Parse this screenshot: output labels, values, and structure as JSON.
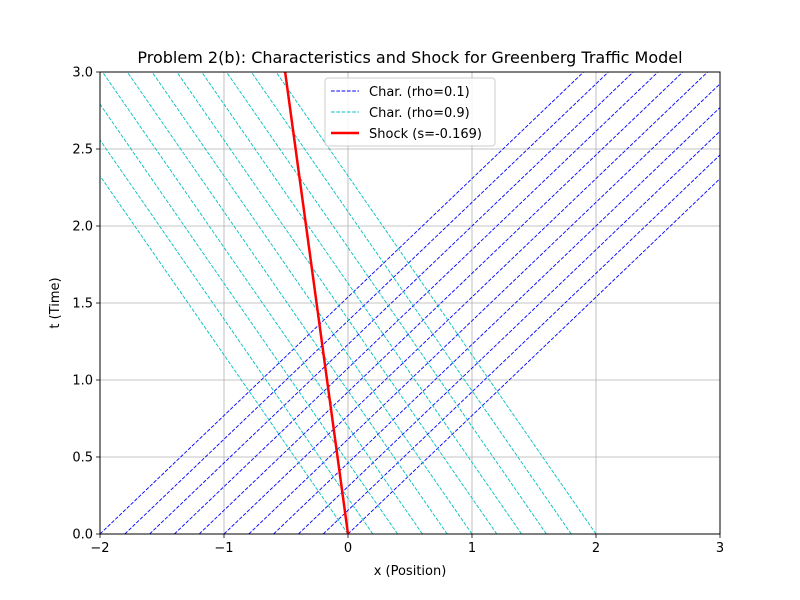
{
  "chart_data": {
    "type": "line",
    "title": "Problem 2(b): Characteristics and Shock for Greenberg Traffic Model",
    "xlabel": "x (Position)",
    "ylabel": "t (Time)",
    "xlim": [
      -2,
      3
    ],
    "ylim": [
      0,
      3
    ],
    "xticks": [
      -2,
      -1,
      0,
      1,
      2,
      3
    ],
    "xtick_labels": [
      "−2",
      "−1",
      "0",
      "1",
      "2",
      "3"
    ],
    "yticks": [
      0,
      0.5,
      1,
      1.5,
      2,
      2.5,
      3
    ],
    "ytick_labels": [
      "0.0",
      "0.5",
      "1.0",
      "1.5",
      "2.0",
      "2.5",
      "3.0"
    ],
    "grid": true,
    "legend_position": "upper center",
    "colors": {
      "left_characteristics": "#0000ff",
      "right_characteristics": "#00bfbf",
      "shock": "#ff0000",
      "grid": "#b0b0b0"
    },
    "series": [
      {
        "name": "Char. (rho=0.1)",
        "style": "dashed",
        "speed_dx_dt": 1.3,
        "x0": [
          -2.0,
          -1.8,
          -1.6,
          -1.4,
          -1.2,
          -1.0,
          -0.8,
          -0.6,
          -0.4,
          -0.2,
          0.0
        ]
      },
      {
        "name": "Char. (rho=0.9)",
        "style": "dashed",
        "speed_dx_dt": -0.86,
        "x0": [
          0.0,
          0.2,
          0.4,
          0.6,
          0.8,
          1.0,
          1.2,
          1.4,
          1.6,
          1.8,
          2.0
        ]
      },
      {
        "name": "Shock (s=-0.169)",
        "style": "solid",
        "x": [
          0,
          -0.507
        ],
        "y": [
          0,
          3
        ]
      }
    ]
  }
}
